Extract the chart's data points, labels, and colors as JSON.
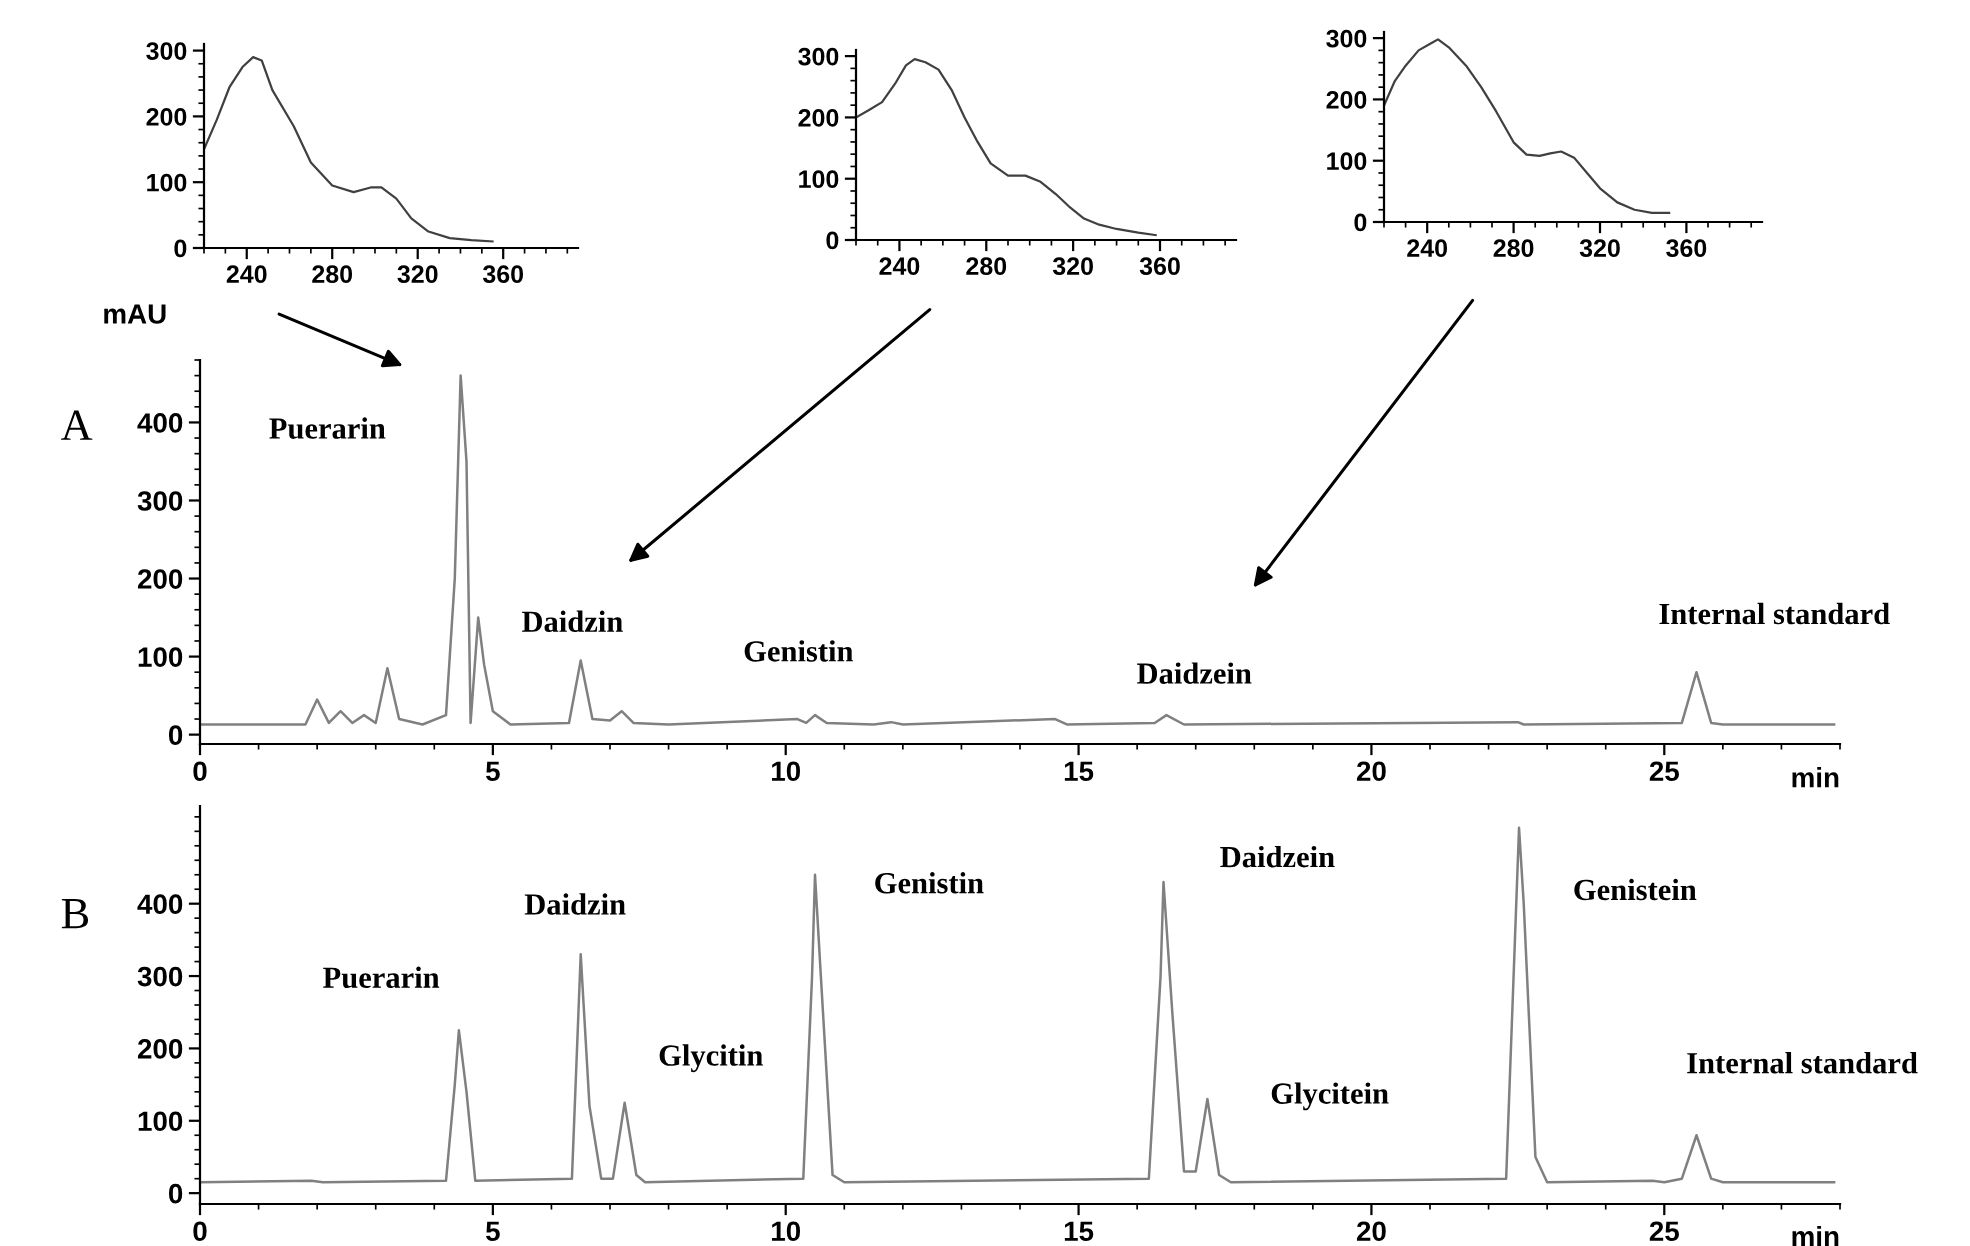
{
  "chart_data": [
    {
      "type": "line",
      "xlim": [
        220,
        395
      ],
      "ylim": [
        0,
        310
      ],
      "xticks": [
        240,
        280,
        320,
        360
      ],
      "yticks": [
        0,
        100,
        200,
        300
      ],
      "grid": false,
      "legend": false,
      "series": [
        {
          "color": "#404040",
          "x": [
            220,
            226,
            232,
            238,
            243,
            247,
            252,
            262,
            270,
            280,
            290,
            298,
            303,
            310,
            317,
            325,
            335,
            345,
            355
          ],
          "values": [
            150,
            195,
            245,
            275,
            290,
            285,
            240,
            185,
            130,
            95,
            85,
            92,
            92,
            75,
            45,
            25,
            15,
            12,
            10
          ]
        }
      ]
    },
    {
      "type": "line",
      "xlim": [
        220,
        395
      ],
      "ylim": [
        0,
        310
      ],
      "xticks": [
        240,
        280,
        320,
        360
      ],
      "yticks": [
        0,
        100,
        200,
        300
      ],
      "grid": false,
      "legend": false,
      "series": [
        {
          "color": "#404040",
          "x": [
            220,
            226,
            232,
            238,
            243,
            247,
            252,
            258,
            264,
            270,
            276,
            282,
            290,
            298,
            305,
            312,
            318,
            325,
            332,
            340,
            350,
            358
          ],
          "values": [
            200,
            212,
            225,
            255,
            285,
            295,
            290,
            278,
            245,
            200,
            160,
            125,
            105,
            105,
            95,
            75,
            55,
            35,
            25,
            18,
            12,
            8
          ]
        }
      ]
    },
    {
      "type": "line",
      "xlim": [
        220,
        395
      ],
      "ylim": [
        0,
        310
      ],
      "xticks": [
        240,
        280,
        320,
        360
      ],
      "yticks": [
        0,
        100,
        200,
        300
      ],
      "grid": false,
      "legend": false,
      "series": [
        {
          "color": "#404040",
          "x": [
            220,
            225,
            230,
            236,
            242,
            245,
            250,
            258,
            265,
            272,
            280,
            286,
            292,
            297,
            302,
            308,
            314,
            320,
            328,
            336,
            344,
            352
          ],
          "values": [
            190,
            230,
            255,
            280,
            292,
            298,
            285,
            255,
            220,
            180,
            130,
            110,
            108,
            112,
            115,
            105,
            80,
            55,
            32,
            20,
            15,
            15
          ]
        }
      ]
    },
    {
      "type": "line",
      "xlim": [
        0,
        28
      ],
      "ylim": [
        -12,
        480
      ],
      "xticks": [
        0,
        5,
        10,
        15,
        20,
        25
      ],
      "yticks": [
        0,
        100,
        200,
        300,
        400
      ],
      "ylabel": "mAU",
      "xlabel": "min",
      "grid": false,
      "legend": false,
      "annotations": [
        "A",
        {
          "text": "Puerarin",
          "x": 4.45,
          "y": 460
        },
        {
          "text": "Daidzin",
          "x": 6.5,
          "y": 95
        },
        {
          "text": "Genistin",
          "x": 10.5,
          "y": 25
        },
        {
          "text": "Daidzein",
          "x": 16.5,
          "y": 25
        },
        {
          "text": "Internal standard",
          "x": 25.55,
          "y": 80
        }
      ],
      "series": [
        {
          "color": "#808080",
          "x": [
            0,
            1.8,
            2.0,
            2.2,
            2.4,
            2.6,
            2.8,
            3.0,
            3.2,
            3.4,
            3.8,
            4.2,
            4.35,
            4.45,
            4.55,
            4.62,
            4.75,
            4.85,
            5.0,
            5.3,
            6.3,
            6.5,
            6.7,
            7.0,
            7.2,
            7.4,
            8.0,
            10.2,
            10.35,
            10.5,
            10.7,
            11.5,
            11.8,
            12.0,
            14.6,
            14.8,
            16.3,
            16.5,
            16.8,
            22.5,
            22.6,
            25.3,
            25.55,
            25.8,
            26.0,
            27.9
          ],
          "values": [
            13,
            13,
            45,
            15,
            30,
            15,
            25,
            15,
            85,
            20,
            13,
            25,
            200,
            460,
            350,
            15,
            150,
            90,
            30,
            13,
            15,
            95,
            20,
            18,
            30,
            15,
            13,
            20,
            15,
            25,
            15,
            13,
            16,
            13,
            20,
            13,
            15,
            25,
            13,
            16,
            13,
            15,
            80,
            15,
            13,
            13
          ]
        }
      ]
    },
    {
      "type": "line",
      "xlim": [
        0,
        28
      ],
      "ylim": [
        -15,
        535
      ],
      "xticks": [
        0,
        5,
        10,
        15,
        20,
        25
      ],
      "yticks": [
        0,
        100,
        200,
        300,
        400
      ],
      "xlabel": "min",
      "grid": false,
      "legend": false,
      "annotations": [
        "B",
        {
          "text": "Puerarin",
          "x": 4.42,
          "y": 225
        },
        {
          "text": "Daidzin",
          "x": 6.5,
          "y": 330
        },
        {
          "text": "Glycitin",
          "x": 7.25,
          "y": 125
        },
        {
          "text": "Genistin",
          "x": 10.5,
          "y": 440
        },
        {
          "text": "Daidzein",
          "x": 16.45,
          "y": 430
        },
        {
          "text": "Glycitein",
          "x": 17.2,
          "y": 130
        },
        {
          "text": "Genistein",
          "x": 22.6,
          "y": 400
        },
        {
          "text": "Internal standard",
          "x": 25.55,
          "y": 80
        }
      ],
      "series": [
        {
          "color": "#808080",
          "x": [
            0,
            1.9,
            2.1,
            4.2,
            4.35,
            4.42,
            4.55,
            4.7,
            6.35,
            6.5,
            6.65,
            6.85,
            7.05,
            7.25,
            7.45,
            7.6,
            10.3,
            10.45,
            10.5,
            10.6,
            10.8,
            11.0,
            16.2,
            16.4,
            16.45,
            16.6,
            16.8,
            17.0,
            17.2,
            17.4,
            17.6,
            22.3,
            22.45,
            22.52,
            22.6,
            22.8,
            23.0,
            24.8,
            25.0,
            25.3,
            25.55,
            25.8,
            26.0,
            27.9
          ],
          "values": [
            15,
            17,
            15,
            17,
            150,
            225,
            140,
            17,
            20,
            330,
            120,
            20,
            20,
            125,
            25,
            15,
            20,
            300,
            440,
            300,
            25,
            15,
            20,
            300,
            430,
            250,
            30,
            30,
            130,
            25,
            15,
            20,
            350,
            505,
            400,
            50,
            15,
            17,
            15,
            20,
            80,
            20,
            15,
            15
          ]
        }
      ]
    }
  ]
}
